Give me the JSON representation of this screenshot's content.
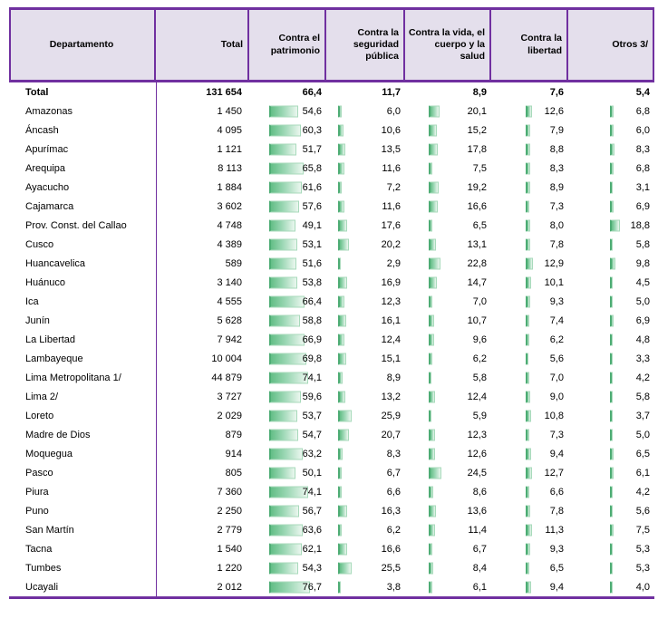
{
  "table": {
    "header": [
      "Departamento",
      "Total",
      "Contra el patrimonio",
      "Contra la seguridad pública",
      "Contra la vida, el cuerpo y la salud",
      "Contra la libertad",
      "Otros 3/"
    ],
    "total_row": {
      "name": "Total",
      "total": "131 654",
      "pcts": [
        "66,4",
        "11,7",
        "8,9",
        "7,6",
        "5,4"
      ]
    },
    "rows": [
      {
        "name": "Amazonas",
        "total": "1 450",
        "pcts": [
          "54,6",
          "6,0",
          "20,1",
          "12,6",
          "6,8"
        ]
      },
      {
        "name": "Áncash",
        "total": "4 095",
        "pcts": [
          "60,3",
          "10,6",
          "15,2",
          "7,9",
          "6,0"
        ]
      },
      {
        "name": "Apurímac",
        "total": "1 121",
        "pcts": [
          "51,7",
          "13,5",
          "17,8",
          "8,8",
          "8,3"
        ]
      },
      {
        "name": "Arequipa",
        "total": "8 113",
        "pcts": [
          "65,8",
          "11,6",
          "7,5",
          "8,3",
          "6,8"
        ]
      },
      {
        "name": "Ayacucho",
        "total": "1 884",
        "pcts": [
          "61,6",
          "7,2",
          "19,2",
          "8,9",
          "3,1"
        ]
      },
      {
        "name": "Cajamarca",
        "total": "3 602",
        "pcts": [
          "57,6",
          "11,6",
          "16,6",
          "7,3",
          "6,9"
        ]
      },
      {
        "name": "Prov. Const. del Callao",
        "total": "4 748",
        "pcts": [
          "49,1",
          "17,6",
          "6,5",
          "8,0",
          "18,8"
        ]
      },
      {
        "name": "Cusco",
        "total": "4 389",
        "pcts": [
          "53,1",
          "20,2",
          "13,1",
          "7,8",
          "5,8"
        ]
      },
      {
        "name": "Huancavelica",
        "total": "589",
        "pcts": [
          "51,6",
          "2,9",
          "22,8",
          "12,9",
          "9,8"
        ]
      },
      {
        "name": "Huánuco",
        "total": "3 140",
        "pcts": [
          "53,8",
          "16,9",
          "14,7",
          "10,1",
          "4,5"
        ]
      },
      {
        "name": "Ica",
        "total": "4 555",
        "pcts": [
          "66,4",
          "12,3",
          "7,0",
          "9,3",
          "5,0"
        ]
      },
      {
        "name": "Junín",
        "total": "5 628",
        "pcts": [
          "58,8",
          "16,1",
          "10,7",
          "7,4",
          "6,9"
        ]
      },
      {
        "name": "La Libertad",
        "total": "7 942",
        "pcts": [
          "66,9",
          "12,4",
          "9,6",
          "6,2",
          "4,8"
        ]
      },
      {
        "name": "Lambayeque",
        "total": "10 004",
        "pcts": [
          "69,8",
          "15,1",
          "6,2",
          "5,6",
          "3,3"
        ]
      },
      {
        "name": "Lima Metropolitana 1/",
        "total": "44 879",
        "pcts": [
          "74,1",
          "8,9",
          "5,8",
          "7,0",
          "4,2"
        ]
      },
      {
        "name": "Lima 2/",
        "total": "3 727",
        "pcts": [
          "59,6",
          "13,2",
          "12,4",
          "9,0",
          "5,8"
        ]
      },
      {
        "name": "Loreto",
        "total": "2 029",
        "pcts": [
          "53,7",
          "25,9",
          "5,9",
          "10,8",
          "3,7"
        ]
      },
      {
        "name": "Madre de Dios",
        "total": "879",
        "pcts": [
          "54,7",
          "20,7",
          "12,3",
          "7,3",
          "5,0"
        ]
      },
      {
        "name": "Moquegua",
        "total": "914",
        "pcts": [
          "63,2",
          "8,3",
          "12,6",
          "9,4",
          "6,5"
        ]
      },
      {
        "name": "Pasco",
        "total": "805",
        "pcts": [
          "50,1",
          "6,7",
          "24,5",
          "12,7",
          "6,1"
        ]
      },
      {
        "name": "Piura",
        "total": "7 360",
        "pcts": [
          "74,1",
          "6,6",
          "8,6",
          "6,6",
          "4,2"
        ]
      },
      {
        "name": "Puno",
        "total": "2 250",
        "pcts": [
          "56,7",
          "16,3",
          "13,6",
          "7,8",
          "5,6"
        ]
      },
      {
        "name": "San Martín",
        "total": "2 779",
        "pcts": [
          "63,6",
          "6,2",
          "11,4",
          "11,3",
          "7,5"
        ]
      },
      {
        "name": "Tacna",
        "total": "1 540",
        "pcts": [
          "62,1",
          "16,6",
          "6,7",
          "9,3",
          "5,3"
        ]
      },
      {
        "name": "Tumbes",
        "total": "1 220",
        "pcts": [
          "54,3",
          "25,5",
          "8,4",
          "6,5",
          "5,3"
        ]
      },
      {
        "name": "Ucayali",
        "total": "2 012",
        "pcts": [
          "76,7",
          "3,8",
          "6,1",
          "9,4",
          "4,0"
        ]
      }
    ]
  },
  "chart_data": {
    "type": "table",
    "title": "",
    "columns": [
      "Departamento",
      "Total",
      "Contra el patrimonio",
      "Contra la seguridad pública",
      "Contra la vida, el cuerpo y la salud",
      "Contra la libertad",
      "Otros 3/"
    ],
    "total": [
      "Total",
      131654,
      66.4,
      11.7,
      8.9,
      7.6,
      5.4
    ],
    "rows": [
      [
        "Amazonas",
        1450,
        54.6,
        6.0,
        20.1,
        12.6,
        6.8
      ],
      [
        "Áncash",
        4095,
        60.3,
        10.6,
        15.2,
        7.9,
        6.0
      ],
      [
        "Apurímac",
        1121,
        51.7,
        13.5,
        17.8,
        8.8,
        8.3
      ],
      [
        "Arequipa",
        8113,
        65.8,
        11.6,
        7.5,
        8.3,
        6.8
      ],
      [
        "Ayacucho",
        1884,
        61.6,
        7.2,
        19.2,
        8.9,
        3.1
      ],
      [
        "Cajamarca",
        3602,
        57.6,
        11.6,
        16.6,
        7.3,
        6.9
      ],
      [
        "Prov. Const. del Callao",
        4748,
        49.1,
        17.6,
        6.5,
        8.0,
        18.8
      ],
      [
        "Cusco",
        4389,
        53.1,
        20.2,
        13.1,
        7.8,
        5.8
      ],
      [
        "Huancavelica",
        589,
        51.6,
        2.9,
        22.8,
        12.9,
        9.8
      ],
      [
        "Huánuco",
        3140,
        53.8,
        16.9,
        14.7,
        10.1,
        4.5
      ],
      [
        "Ica",
        4555,
        66.4,
        12.3,
        7.0,
        9.3,
        5.0
      ],
      [
        "Junín",
        5628,
        58.8,
        16.1,
        10.7,
        7.4,
        6.9
      ],
      [
        "La Libertad",
        7942,
        66.9,
        12.4,
        9.6,
        6.2,
        4.8
      ],
      [
        "Lambayeque",
        10004,
        69.8,
        15.1,
        6.2,
        5.6,
        3.3
      ],
      [
        "Lima Metropolitana 1/",
        44879,
        74.1,
        8.9,
        5.8,
        7.0,
        4.2
      ],
      [
        "Lima 2/",
        3727,
        59.6,
        13.2,
        12.4,
        9.0,
        5.8
      ],
      [
        "Loreto",
        2029,
        53.7,
        25.9,
        5.9,
        10.8,
        3.7
      ],
      [
        "Madre de Dios",
        879,
        54.7,
        20.7,
        12.3,
        7.3,
        5.0
      ],
      [
        "Moquegua",
        914,
        63.2,
        8.3,
        12.6,
        9.4,
        6.5
      ],
      [
        "Pasco",
        805,
        50.1,
        6.7,
        24.5,
        12.7,
        6.1
      ],
      [
        "Piura",
        7360,
        74.1,
        6.6,
        8.6,
        6.6,
        4.2
      ],
      [
        "Puno",
        2250,
        56.7,
        16.3,
        13.6,
        7.8,
        5.6
      ],
      [
        "San Martín",
        2779,
        63.6,
        6.2,
        11.4,
        11.3,
        7.5
      ],
      [
        "Tacna",
        1540,
        62.1,
        16.6,
        6.7,
        9.3,
        5.3
      ],
      [
        "Tumbes",
        1220,
        54.3,
        25.5,
        8.4,
        6.5,
        5.3
      ],
      [
        "Ucayali",
        2012,
        76.7,
        3.8,
        6.1,
        9.4,
        4.0
      ]
    ],
    "bar_columns": [
      "Contra el patrimonio",
      "Contra la seguridad pública",
      "Contra la vida, el cuerpo y la salud",
      "Contra la libertad",
      "Otros 3/"
    ],
    "bar_scale": [
      0,
      100
    ]
  },
  "colors": {
    "border_purple": "#7030A0",
    "header_bg": "#E4DFEC",
    "bar_green": "#63BE86",
    "bar_green_edge": "#4DAC74"
  }
}
